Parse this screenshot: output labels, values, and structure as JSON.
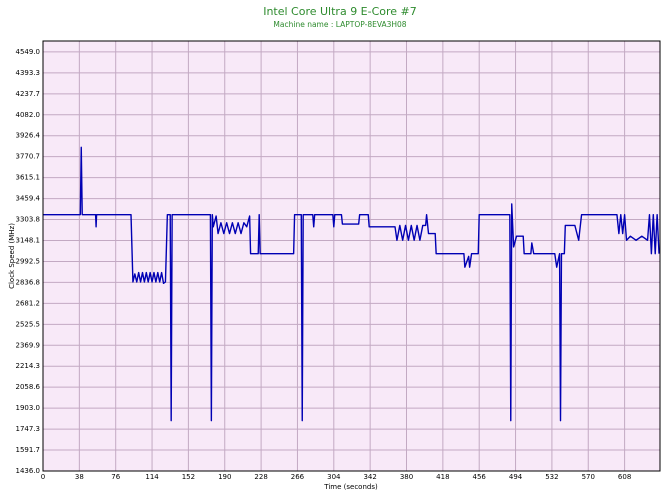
{
  "chart_data": {
    "type": "line",
    "title": "Intel Core Ultra 9 E-Core #7",
    "subtitle": "Machine name : LAPTOP-8EVA3H08",
    "x_label": "Time (seconds)",
    "y_label": "Clock Speed (MHz)",
    "color": "#0000b4",
    "grid": true,
    "xlim": [
      0,
      645
    ],
    "ylim": [
      1436,
      4630
    ],
    "xticks": [
      0,
      38,
      76,
      114,
      152,
      190,
      228,
      266,
      304,
      342,
      380,
      418,
      456,
      494,
      532,
      570,
      608
    ],
    "yticks": [
      {
        "value": 1436,
        "label": "1436.0"
      },
      1591.7,
      1747.3,
      {
        "value": 1903,
        "label": "1903.0"
      },
      2058.6,
      2214.3,
      2369.9,
      2525.5,
      2681.2,
      2836.8,
      2992.5,
      3148.1,
      3303.8,
      3459.4,
      3615.1,
      3770.7,
      3926.4,
      {
        "value": 4082,
        "label": "4082.0"
      },
      4237.7,
      4393.3,
      {
        "value": 4549,
        "label": "4549.0"
      }
    ],
    "x": [
      0,
      39,
      40,
      41,
      55,
      55.5,
      56,
      92,
      94,
      96,
      98,
      100,
      102,
      104,
      106,
      108,
      110,
      112,
      114,
      116,
      118,
      120,
      122,
      124,
      126,
      128,
      130,
      133,
      134,
      135,
      175,
      176,
      177,
      178,
      181,
      183,
      186,
      189,
      192,
      195,
      198,
      201,
      204,
      207,
      210,
      213,
      216,
      217,
      225,
      226,
      227,
      262,
      263,
      270,
      271,
      272,
      282,
      283,
      284,
      303,
      304,
      305,
      312,
      313,
      330,
      331,
      340,
      341,
      368,
      370,
      373,
      376,
      379,
      382,
      385,
      388,
      391,
      394,
      397,
      400,
      401,
      403,
      410,
      411,
      440,
      441,
      445,
      446,
      448,
      455,
      456,
      488,
      489,
      490,
      492,
      495,
      502,
      503,
      510,
      511,
      513,
      535,
      537,
      540,
      541,
      542,
      545,
      546,
      556,
      560,
      563,
      600,
      602,
      604,
      606,
      608,
      610,
      614,
      620,
      626,
      632,
      634,
      636,
      638,
      640,
      642,
      644
    ],
    "values": [
      3340,
      3340,
      3840,
      3340,
      3340,
      3250,
      3340,
      3340,
      2840,
      2900,
      2840,
      2910,
      2840,
      2910,
      2840,
      2910,
      2840,
      2910,
      2840,
      2910,
      2840,
      2910,
      2840,
      2910,
      2830,
      2840,
      3340,
      3340,
      1810,
      3340,
      3340,
      1810,
      3340,
      3250,
      3330,
      3200,
      3280,
      3200,
      3280,
      3200,
      3280,
      3200,
      3280,
      3200,
      3280,
      3250,
      3330,
      3050,
      3050,
      3340,
      3050,
      3050,
      3340,
      3340,
      1810,
      3340,
      3340,
      3250,
      3340,
      3340,
      3250,
      3340,
      3340,
      3270,
      3270,
      3340,
      3340,
      3250,
      3250,
      3150,
      3260,
      3150,
      3260,
      3150,
      3260,
      3150,
      3260,
      3150,
      3260,
      3260,
      3340,
      3200,
      3200,
      3050,
      3050,
      2950,
      3030,
      2950,
      3050,
      3050,
      3340,
      3340,
      1810,
      3420,
      3100,
      3180,
      3180,
      3050,
      3050,
      3130,
      3050,
      3050,
      2950,
      3050,
      1810,
      3050,
      3050,
      3260,
      3260,
      3150,
      3340,
      3340,
      3200,
      3340,
      3200,
      3340,
      3150,
      3180,
      3150,
      3180,
      3150,
      3340,
      3050,
      3340,
      3050,
      3340,
      3050
    ]
  }
}
